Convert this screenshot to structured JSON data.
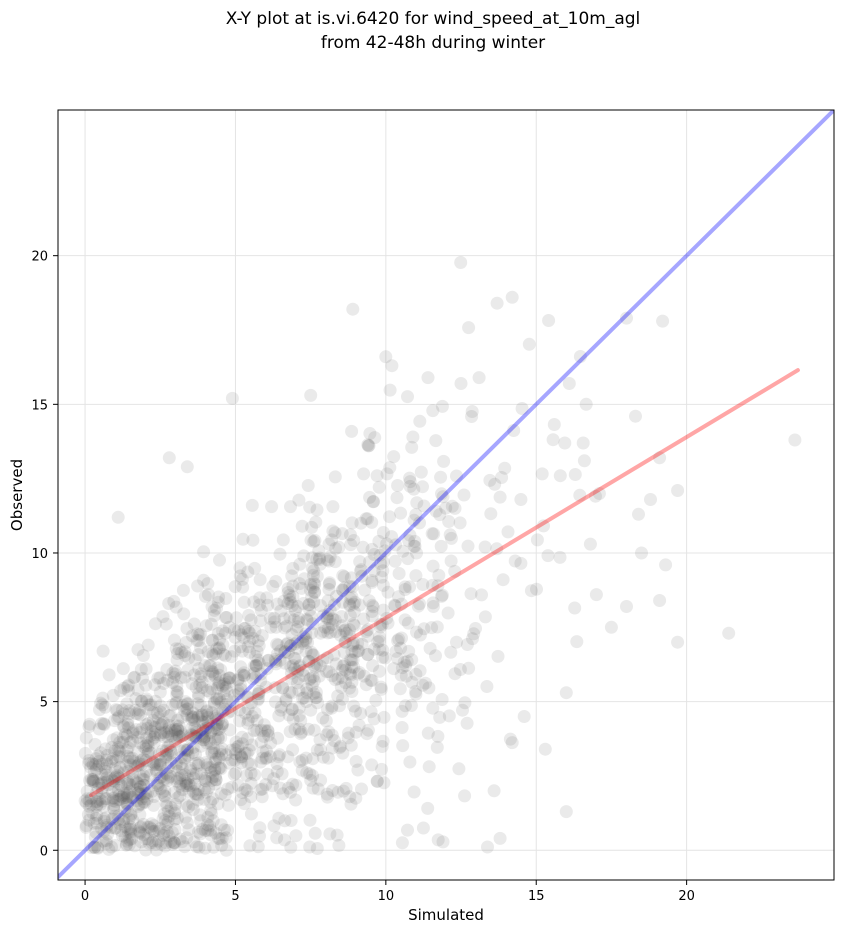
{
  "chart_data": {
    "type": "scatter",
    "title": [
      "X-Y plot at is.vi.6420 for wind_speed_at_10m_agl",
      "from 42-48h during winter"
    ],
    "xlabel": "Simulated",
    "ylabel": "Observed",
    "xlim": [
      -0.9,
      24.9
    ],
    "ylim": [
      -1.0,
      24.9
    ],
    "xticks": [
      0,
      5,
      10,
      15,
      20
    ],
    "yticks": [
      0,
      5,
      10,
      15,
      20
    ],
    "grid": true,
    "colors": {
      "points": "#555555",
      "identity_line": "#0000ff",
      "fit_line": "#ff0000"
    },
    "scatter": {
      "note_points": [
        [
          8.9,
          18.2
        ],
        [
          13.7,
          18.4
        ],
        [
          14.2,
          18.6
        ],
        [
          18.0,
          17.9
        ],
        [
          19.2,
          17.8
        ],
        [
          10.0,
          16.6
        ],
        [
          10.2,
          16.3
        ],
        [
          16.1,
          15.7
        ],
        [
          13.1,
          15.9
        ],
        [
          12.5,
          15.7
        ],
        [
          4.9,
          15.2
        ],
        [
          7.5,
          15.3
        ],
        [
          11.4,
          15.9
        ],
        [
          18.3,
          14.6
        ],
        [
          23.6,
          13.8
        ],
        [
          19.1,
          13.2
        ],
        [
          19.7,
          12.1
        ],
        [
          21.4,
          7.3
        ],
        [
          19.7,
          7.0
        ],
        [
          17.5,
          7.5
        ],
        [
          18.0,
          8.2
        ],
        [
          19.1,
          8.4
        ],
        [
          15.3,
          3.4
        ],
        [
          16.0,
          5.3
        ],
        [
          16.0,
          1.3
        ],
        [
          13.8,
          0.4
        ],
        [
          13.6,
          2.0
        ],
        [
          14.6,
          4.5
        ],
        [
          2.8,
          13.2
        ],
        [
          3.4,
          12.9
        ],
        [
          1.1,
          11.2
        ],
        [
          0.6,
          6.7
        ],
        [
          0.3,
          0.9
        ],
        [
          0.8,
          5.9
        ],
        [
          16.6,
          13.1
        ],
        [
          17.1,
          12.0
        ],
        [
          18.4,
          11.3
        ],
        [
          18.8,
          11.8
        ],
        [
          18.5,
          10.0
        ],
        [
          19.3,
          9.6
        ],
        [
          16.8,
          10.3
        ],
        [
          17.0,
          8.6
        ],
        [
          15.8,
          12.6
        ],
        [
          12.3,
          11.5
        ],
        [
          10.9,
          13.9
        ]
      ],
      "generated_count": 1600,
      "generated_seed": 6420
    },
    "lines": [
      {
        "kind": "identity",
        "x": [
          -0.9,
          24.9
        ],
        "y": [
          -0.9,
          24.9
        ]
      },
      {
        "kind": "linear-fit",
        "x": [
          0.2,
          23.7
        ],
        "y": [
          1.85,
          16.15
        ]
      }
    ]
  }
}
